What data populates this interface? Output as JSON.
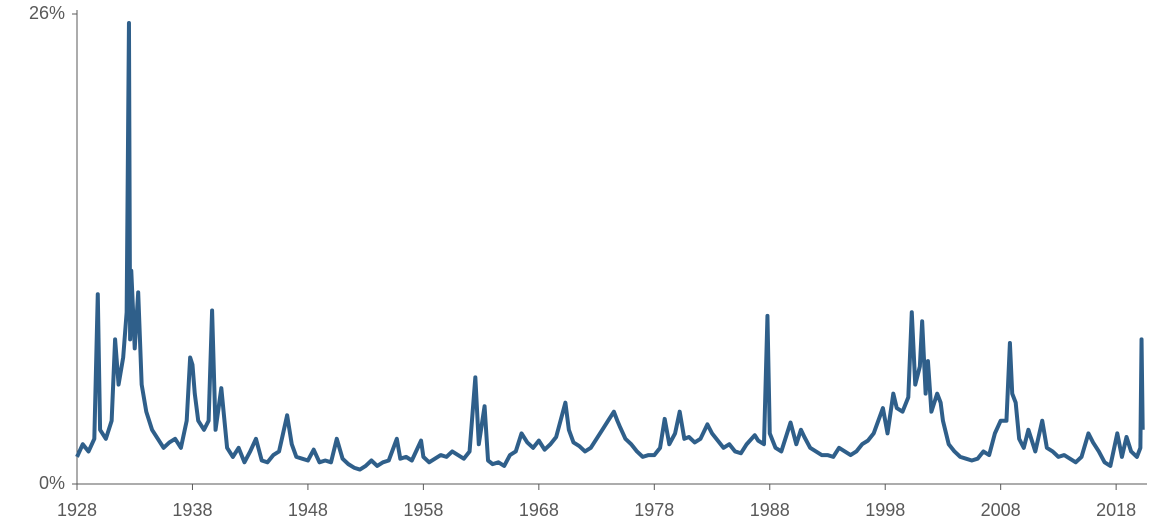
{
  "chart_data": {
    "type": "line",
    "color": "#2f5f8a",
    "x": [
      1928.0,
      1928.5,
      1929.0,
      1929.5,
      1929.8,
      1930.0,
      1930.5,
      1931.0,
      1931.3,
      1931.6,
      1932.0,
      1932.3,
      1932.5,
      1932.6,
      1932.7,
      1933.0,
      1933.3,
      1933.6,
      1934.0,
      1934.5,
      1935.0,
      1935.5,
      1936.0,
      1936.5,
      1937.0,
      1937.5,
      1937.8,
      1938.0,
      1938.2,
      1938.5,
      1939.0,
      1939.4,
      1939.7,
      1940.0,
      1940.5,
      1941.0,
      1941.5,
      1942.0,
      1942.5,
      1943.0,
      1943.5,
      1944.0,
      1944.5,
      1945.0,
      1945.5,
      1946.2,
      1946.6,
      1947.0,
      1947.5,
      1948.0,
      1948.5,
      1949.0,
      1949.5,
      1950.0,
      1950.5,
      1951.0,
      1951.5,
      1952.0,
      1952.5,
      1953.0,
      1953.5,
      1954.0,
      1954.5,
      1955.0,
      1955.7,
      1956.0,
      1956.5,
      1957.0,
      1957.8,
      1958.0,
      1958.5,
      1959.0,
      1959.5,
      1960.0,
      1960.5,
      1961.0,
      1961.5,
      1962.0,
      1962.5,
      1962.8,
      1963.3,
      1963.6,
      1964.0,
      1964.5,
      1965.0,
      1965.5,
      1966.0,
      1966.5,
      1967.0,
      1967.5,
      1968.0,
      1968.5,
      1969.0,
      1969.5,
      1970.3,
      1970.6,
      1971.0,
      1971.5,
      1972.0,
      1972.5,
      1973.0,
      1973.5,
      1974.0,
      1974.5,
      1974.8,
      1975.0,
      1975.5,
      1976.0,
      1976.5,
      1977.0,
      1977.5,
      1978.0,
      1978.5,
      1978.9,
      1979.3,
      1979.8,
      1980.2,
      1980.6,
      1981.0,
      1981.5,
      1982.0,
      1982.6,
      1983.0,
      1983.5,
      1984.0,
      1984.5,
      1985.0,
      1985.5,
      1986.0,
      1986.7,
      1987.0,
      1987.5,
      1987.8,
      1988.0,
      1988.5,
      1989.0,
      1989.8,
      1990.3,
      1990.7,
      1991.0,
      1991.5,
      1992.0,
      1992.5,
      1993.0,
      1993.5,
      1994.0,
      1994.5,
      1995.0,
      1995.5,
      1996.0,
      1996.5,
      1997.0,
      1997.8,
      1998.2,
      1998.7,
      1999.0,
      1999.5,
      2000.0,
      2000.3,
      2000.6,
      2001.0,
      2001.2,
      2001.5,
      2001.7,
      2002.0,
      2002.5,
      2002.8,
      2003.0,
      2003.5,
      2004.0,
      2004.5,
      2005.0,
      2005.5,
      2006.0,
      2006.5,
      2007.0,
      2007.5,
      2008.0,
      2008.5,
      2008.8,
      2009.0,
      2009.3,
      2009.6,
      2010.0,
      2010.4,
      2011.0,
      2011.6,
      2012.0,
      2012.5,
      2013.0,
      2013.5,
      2014.0,
      2014.5,
      2015.0,
      2015.6,
      2016.0,
      2016.5,
      2017.0,
      2017.5,
      2018.1,
      2018.5,
      2018.9,
      2019.3,
      2019.8,
      2020.1,
      2020.2,
      2020.3
    ],
    "values": [
      1.5,
      2.2,
      1.8,
      2.5,
      10.5,
      3.0,
      2.5,
      3.5,
      8.0,
      5.5,
      7.0,
      9.5,
      25.5,
      8.0,
      11.8,
      7.5,
      10.6,
      5.5,
      4.0,
      3.0,
      2.5,
      2.0,
      2.3,
      2.5,
      2.0,
      3.5,
      7.0,
      6.6,
      5.0,
      3.5,
      3.0,
      3.5,
      9.6,
      3.0,
      5.3,
      2.0,
      1.5,
      2.0,
      1.2,
      1.8,
      2.5,
      1.3,
      1.2,
      1.6,
      1.8,
      3.8,
      2.2,
      1.5,
      1.4,
      1.3,
      1.9,
      1.2,
      1.3,
      1.2,
      2.5,
      1.4,
      1.1,
      0.9,
      0.8,
      1.0,
      1.3,
      1.0,
      1.2,
      1.3,
      2.5,
      1.4,
      1.5,
      1.3,
      2.4,
      1.5,
      1.2,
      1.4,
      1.6,
      1.5,
      1.8,
      1.6,
      1.4,
      1.8,
      5.9,
      2.2,
      4.3,
      1.3,
      1.1,
      1.2,
      1.0,
      1.6,
      1.8,
      2.8,
      2.3,
      2.0,
      2.4,
      1.9,
      2.2,
      2.6,
      4.5,
      3.0,
      2.3,
      2.1,
      1.8,
      2.0,
      2.5,
      3.0,
      3.5,
      4.0,
      3.5,
      3.2,
      2.5,
      2.2,
      1.8,
      1.5,
      1.6,
      1.6,
      2.0,
      3.6,
      2.2,
      2.8,
      4.0,
      2.5,
      2.6,
      2.3,
      2.5,
      3.3,
      2.8,
      2.4,
      2.0,
      2.2,
      1.8,
      1.7,
      2.2,
      2.7,
      2.4,
      2.2,
      9.3,
      2.8,
      2.0,
      1.8,
      3.4,
      2.2,
      3.0,
      2.6,
      2.0,
      1.8,
      1.6,
      1.6,
      1.5,
      2.0,
      1.8,
      1.6,
      1.8,
      2.2,
      2.4,
      2.8,
      4.2,
      2.8,
      5.0,
      4.2,
      4.0,
      4.8,
      9.5,
      5.5,
      6.5,
      9.0,
      5.0,
      6.8,
      4.0,
      5.0,
      4.5,
      3.5,
      2.2,
      1.8,
      1.5,
      1.4,
      1.3,
      1.4,
      1.8,
      1.6,
      2.8,
      3.5,
      3.5,
      7.8,
      5.0,
      4.5,
      2.5,
      2.0,
      3.0,
      1.8,
      3.5,
      2.0,
      1.8,
      1.5,
      1.6,
      1.4,
      1.2,
      1.5,
      2.8,
      2.3,
      1.8,
      1.2,
      1.0,
      2.8,
      1.5,
      2.6,
      1.8,
      1.5,
      2.0,
      8.0,
      3.0
    ],
    "xlim": [
      1928,
      2020.5
    ],
    "xticks": [
      1928,
      1938,
      1948,
      1958,
      1968,
      1978,
      1988,
      1998,
      2008,
      2018
    ],
    "ylim": [
      0,
      26
    ],
    "yticks": [
      {
        "value": 0,
        "label": "0%"
      },
      {
        "value": 26,
        "label": "26%"
      }
    ]
  }
}
